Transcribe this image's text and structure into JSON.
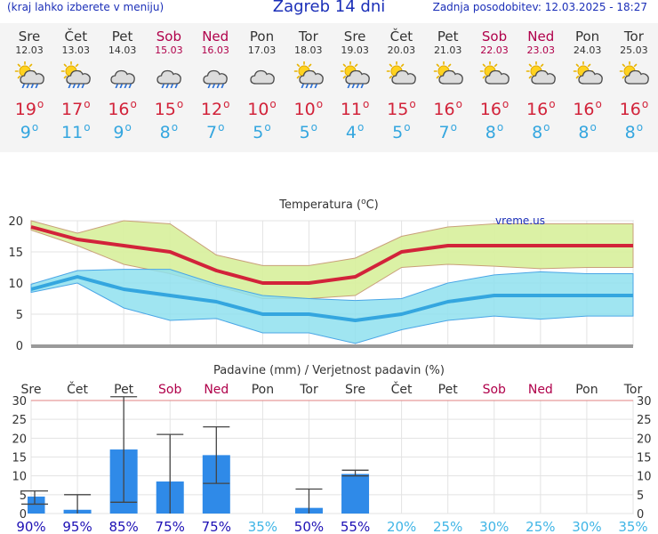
{
  "header": {
    "note_left": "(kraj lahko izberete v meniju)",
    "title": "Zagreb 14 dni",
    "note_right": "Zadnja posodobitev: 12.03.2025 - 18:27"
  },
  "colors": {
    "max_temp": "#d2233a",
    "min_temp": "#34a6df",
    "weekend": "#b0004a",
    "max_band": "#d7ef9b",
    "min_band": "#8fe0ef",
    "precip_bar": "#2f8ae8",
    "probability": "#1d10b5"
  },
  "days": [
    {
      "name": "Sre",
      "date": "12.03",
      "icon": "sun-cloud-rain-icon",
      "max": "19",
      "min": "9",
      "weekend": false
    },
    {
      "name": "Čet",
      "date": "13.03",
      "icon": "sun-cloud-rain-icon",
      "max": "17",
      "min": "11",
      "weekend": false
    },
    {
      "name": "Pet",
      "date": "14.03",
      "icon": "cloud-rain-icon",
      "max": "16",
      "min": "9",
      "weekend": false
    },
    {
      "name": "Sob",
      "date": "15.03",
      "icon": "cloud-rain-icon",
      "max": "15",
      "min": "8",
      "weekend": true
    },
    {
      "name": "Ned",
      "date": "16.03",
      "icon": "cloud-rain-icon",
      "max": "12",
      "min": "7",
      "weekend": true
    },
    {
      "name": "Pon",
      "date": "17.03",
      "icon": "cloud-icon",
      "max": "10",
      "min": "5",
      "weekend": false
    },
    {
      "name": "Tor",
      "date": "18.03",
      "icon": "sun-cloud-rain-icon",
      "max": "10",
      "min": "5",
      "weekend": false
    },
    {
      "name": "Sre",
      "date": "19.03",
      "icon": "sun-cloud-rain-icon",
      "max": "11",
      "min": "4",
      "weekend": false
    },
    {
      "name": "Čet",
      "date": "20.03",
      "icon": "sun-cloud-icon",
      "max": "15",
      "min": "5",
      "weekend": false
    },
    {
      "name": "Pet",
      "date": "21.03",
      "icon": "sun-cloud-icon",
      "max": "16",
      "min": "7",
      "weekend": false
    },
    {
      "name": "Sob",
      "date": "22.03",
      "icon": "sun-cloud-icon",
      "max": "16",
      "min": "8",
      "weekend": true
    },
    {
      "name": "Ned",
      "date": "23.03",
      "icon": "sun-cloud-icon",
      "max": "16",
      "min": "8",
      "weekend": true
    },
    {
      "name": "Pon",
      "date": "24.03",
      "icon": "sun-cloud-icon",
      "max": "16",
      "min": "8",
      "weekend": false
    },
    {
      "name": "Tor",
      "date": "25.03",
      "icon": "sun-cloud-icon",
      "max": "16",
      "min": "8",
      "weekend": false
    }
  ],
  "chart_data": [
    {
      "type": "line",
      "title": "Temperatura (°C)",
      "watermark": "vreme.us",
      "ylim": [
        0,
        20
      ],
      "yticks": [
        0,
        5,
        10,
        15,
        20
      ],
      "grid": true,
      "x": [
        0,
        1,
        2,
        3,
        4,
        5,
        6,
        7,
        8,
        9,
        10,
        11,
        12,
        13
      ],
      "series": [
        {
          "name": "max",
          "values": [
            19,
            17,
            16,
            15,
            12,
            10,
            10,
            11,
            15,
            16,
            16,
            16,
            16,
            16
          ]
        },
        {
          "name": "min",
          "values": [
            9,
            11,
            9,
            8,
            7,
            5,
            5,
            4,
            5,
            7,
            8,
            8,
            8,
            8
          ]
        }
      ],
      "bands": [
        {
          "name": "max-range",
          "low": [
            18.5,
            16,
            13,
            11.5,
            9.5,
            7.5,
            7.5,
            8,
            12.5,
            13,
            12.7,
            12.3,
            12.5,
            12.5
          ],
          "high": [
            20,
            18,
            20,
            19.5,
            14.5,
            12.8,
            12.8,
            14,
            17.5,
            19,
            19.5,
            19.5,
            19.5,
            19.5
          ]
        },
        {
          "name": "min-range",
          "low": [
            8.5,
            10,
            6,
            4,
            4.3,
            2,
            2,
            0.3,
            2.5,
            4,
            4.7,
            4.2,
            4.7,
            4.7
          ],
          "high": [
            9.8,
            12,
            12.2,
            12.2,
            9.8,
            8,
            7.5,
            7.2,
            7.5,
            10,
            11.3,
            11.8,
            11.5,
            11.5
          ]
        }
      ]
    },
    {
      "type": "bar",
      "title": "Padavine (mm) / Verjetnost padavin (%)",
      "categories": [
        "Sre",
        "Čet",
        "Pet",
        "Sob",
        "Ned",
        "Pon",
        "Tor",
        "Sre",
        "Čet",
        "Pet",
        "Sob",
        "Ned",
        "Pon",
        "Tor"
      ],
      "weekend": [
        false,
        false,
        false,
        true,
        true,
        false,
        false,
        false,
        false,
        false,
        true,
        true,
        false,
        false
      ],
      "values": [
        4.5,
        1,
        17,
        8.5,
        15.5,
        0,
        1.5,
        10.5,
        0,
        0,
        0,
        0,
        0,
        0
      ],
      "error_low": [
        2.5,
        0,
        3,
        0,
        8,
        null,
        0,
        10,
        null,
        null,
        null,
        null,
        null,
        null
      ],
      "error_high": [
        6,
        5,
        31,
        21,
        23,
        null,
        6.5,
        11.5,
        null,
        null,
        null,
        null,
        null,
        null
      ],
      "probability": [
        "90%",
        "95%",
        "85%",
        "75%",
        "75%",
        "35%",
        "50%",
        "55%",
        "20%",
        "25%",
        "30%",
        "25%",
        "30%",
        "35%"
      ],
      "probability_strong": [
        true,
        true,
        true,
        true,
        true,
        false,
        true,
        true,
        false,
        false,
        false,
        false,
        false,
        false
      ],
      "ylim": [
        0,
        30
      ],
      "yticks": [
        0,
        5,
        10,
        15,
        20,
        25,
        30
      ],
      "grid": true
    }
  ]
}
